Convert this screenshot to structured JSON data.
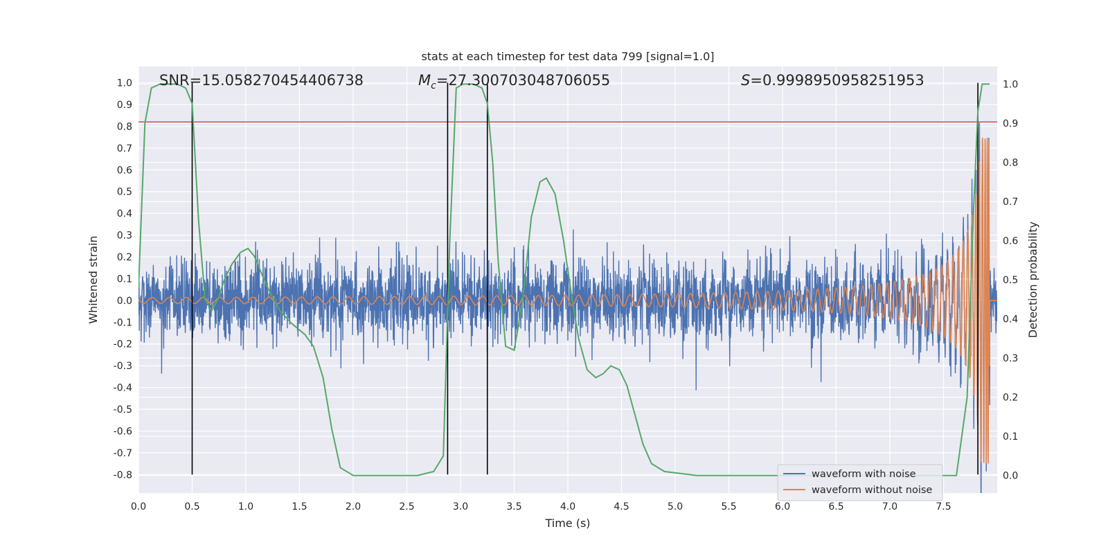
{
  "chart_data": {
    "type": "line",
    "title": "stats at each timestep for test data 799 [signal=1.0]",
    "xlabel": "Time (s)",
    "ylabel": "Whitened strain",
    "ylabel_right": "Detection probability",
    "xlim": [
      0,
      8
    ],
    "ylim": [
      -0.885,
      1.075
    ],
    "ylim_right": [
      -0.045,
      1.045
    ],
    "x_ticks": [
      "0.0",
      "0.5",
      "1.0",
      "1.5",
      "2.0",
      "2.5",
      "3.0",
      "3.5",
      "4.0",
      "4.5",
      "5.0",
      "5.5",
      "6.0",
      "6.5",
      "7.0",
      "7.5"
    ],
    "y_ticks": [
      "1.0",
      "0.9",
      "0.8",
      "0.7",
      "0.6",
      "0.5",
      "0.4",
      "0.3",
      "0.2",
      "0.1",
      "0.0",
      "-0.1",
      "-0.2",
      "-0.3",
      "-0.4",
      "-0.5",
      "-0.6",
      "-0.7",
      "-0.8"
    ],
    "y_ticks_right": [
      "1.0",
      "0.9",
      "0.8",
      "0.7",
      "0.6",
      "0.5",
      "0.4",
      "0.3",
      "0.2",
      "0.1",
      "0.0"
    ],
    "annotations": {
      "snr": "SNR=15.058270454406738",
      "mc_symbol": "M",
      "mc_sub": "c",
      "mc_value": "=27.300703048706055",
      "s_symbol": "S",
      "s_value": "=0.9998950958251953"
    },
    "threshold": 0.82,
    "vlines": [
      0.5,
      2.88,
      3.25,
      7.82
    ],
    "legend": [
      "waveform with noise",
      "waveform without noise"
    ],
    "legend_position": "lower right",
    "grid": true,
    "series": [
      {
        "name": "waveform with noise",
        "axis": "left",
        "style": "noise, amplitude ≈0.22, spikes to ≈0.4"
      },
      {
        "name": "waveform without noise",
        "axis": "left",
        "style": "chirp, merger near t≈7.9 s"
      },
      {
        "axis": "right",
        "x": [
          0.0,
          0.06,
          0.12,
          0.2,
          0.3,
          0.36,
          0.44,
          0.5,
          0.56,
          0.62,
          0.68,
          0.74,
          0.8,
          0.87,
          0.95,
          1.02,
          1.08,
          1.14,
          1.22,
          1.32,
          1.42,
          1.55,
          1.63,
          1.72,
          1.8,
          1.88,
          2.0,
          2.3,
          2.6,
          2.75,
          2.84,
          2.9,
          2.96,
          3.02,
          3.12,
          3.2,
          3.25,
          3.3,
          3.35,
          3.42,
          3.5,
          3.58,
          3.66,
          3.74,
          3.8,
          3.88,
          3.96,
          4.04,
          4.1,
          4.18,
          4.26,
          4.33,
          4.4,
          4.48,
          4.55,
          4.62,
          4.7,
          4.78,
          4.9,
          5.2,
          6.0,
          7.0,
          7.62,
          7.72,
          7.78,
          7.82,
          7.86,
          7.9,
          7.93
        ],
        "y": [
          0.48,
          0.9,
          0.99,
          1.0,
          1.0,
          1.0,
          0.99,
          0.95,
          0.65,
          0.45,
          0.42,
          0.45,
          0.5,
          0.54,
          0.57,
          0.58,
          0.56,
          0.52,
          0.47,
          0.42,
          0.39,
          0.36,
          0.33,
          0.25,
          0.12,
          0.02,
          0.0,
          0.0,
          0.0,
          0.01,
          0.05,
          0.6,
          0.99,
          1.0,
          1.0,
          0.99,
          0.95,
          0.8,
          0.55,
          0.33,
          0.32,
          0.45,
          0.66,
          0.75,
          0.76,
          0.72,
          0.6,
          0.45,
          0.35,
          0.27,
          0.25,
          0.26,
          0.28,
          0.27,
          0.23,
          0.16,
          0.08,
          0.03,
          0.01,
          0.0,
          0.0,
          0.0,
          0.0,
          0.2,
          0.68,
          0.93,
          1.0,
          1.0,
          1.0
        ]
      }
    ]
  },
  "colors": {
    "plot_bg": "#eaeaf2",
    "grid": "#ffffff",
    "noise": "#4c72b0",
    "clean": "#dd8452",
    "prob": "#55a868",
    "threshold": "#c44e52",
    "vline": "#000000",
    "text": "#262626"
  }
}
